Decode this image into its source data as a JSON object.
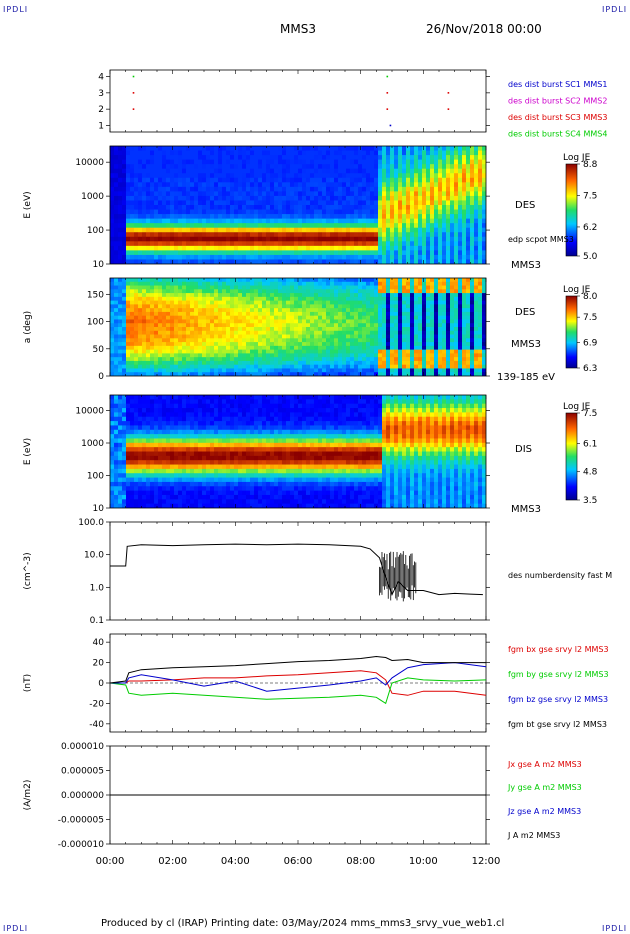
{
  "header": {
    "corner_left_top": "IPDLI",
    "corner_right_top": "IPDLI",
    "corner_left_bottom": "IPDLI",
    "corner_right_bottom": "IPDLI",
    "spacecraft": "MMS3",
    "date": "26/Nov/2018 00:00"
  },
  "footer": {
    "text": "Produced by cl (IRAP)   Printing date: 03/May/2024   mms_mms3_srvy_vue_web1.cl"
  },
  "colors": {
    "blue": "#0000cc",
    "magenta": "#cc00cc",
    "red": "#dd0000",
    "green": "#00cc00",
    "black": "#000000"
  },
  "chart_data": [
    {
      "type": "scatter",
      "panel": "burst",
      "yticks": [
        "4",
        "3",
        "2",
        "1"
      ],
      "ylim": [
        0.6,
        4.4
      ],
      "legend": [
        {
          "text": "des dist burst SC1 MMS1",
          "color": "#0000cc"
        },
        {
          "text": "des dist burst SC2 MMS2",
          "color": "#cc00cc"
        },
        {
          "text": "des dist burst SC3 MMS3",
          "color": "#dd0000"
        },
        {
          "text": "des dist burst SC4 MMS4",
          "color": "#00cc00"
        }
      ],
      "points": [
        {
          "x": 0.75,
          "y": 4,
          "color": "#00cc00"
        },
        {
          "x": 0.75,
          "y": 3,
          "color": "#dd0000"
        },
        {
          "x": 0.75,
          "y": 2,
          "color": "#dd0000"
        },
        {
          "x": 8.85,
          "y": 4,
          "color": "#00cc00"
        },
        {
          "x": 8.85,
          "y": 3,
          "color": "#dd0000"
        },
        {
          "x": 8.85,
          "y": 2,
          "color": "#dd0000"
        },
        {
          "x": 8.95,
          "y": 1,
          "color": "#0000cc"
        },
        {
          "x": 10.8,
          "y": 3,
          "color": "#dd0000"
        },
        {
          "x": 10.8,
          "y": 2,
          "color": "#dd0000"
        }
      ]
    },
    {
      "type": "heatmap",
      "panel": "des-energy",
      "ylabel": "E (eV)",
      "yticks": [
        "10000",
        "1000",
        "100",
        "10"
      ],
      "ylim": [
        10,
        30000
      ],
      "yscale": "log",
      "right_labels": [
        "DES",
        "edp scpot MMS3",
        "MMS3"
      ],
      "colorbar": {
        "title": "Log JE",
        "ticks": [
          "8.8",
          "7.5",
          "6.2",
          "5.0"
        ],
        "range": [
          5.0,
          8.8
        ]
      }
    },
    {
      "type": "heatmap",
      "panel": "des-pitch",
      "ylabel": "a (deg)",
      "yticks": [
        "150",
        "100",
        "50",
        "0"
      ],
      "ylim": [
        0,
        180
      ],
      "right_labels": [
        "DES",
        "MMS3",
        "139-185 eV"
      ],
      "colorbar": {
        "title": "Log JE",
        "ticks": [
          "8.0",
          "7.5",
          "6.9",
          "6.3"
        ],
        "range": [
          6.3,
          8.0
        ]
      }
    },
    {
      "type": "heatmap",
      "panel": "dis-energy",
      "ylabel": "E (eV)",
      "yticks": [
        "10000",
        "1000",
        "100",
        "10"
      ],
      "ylim": [
        10,
        30000
      ],
      "yscale": "log",
      "right_labels": [
        "DIS",
        "MMS3"
      ],
      "colorbar": {
        "title": "Log JE",
        "ticks": [
          "7.5",
          "6.1",
          "4.8",
          "3.5"
        ],
        "range": [
          3.5,
          7.5
        ]
      }
    },
    {
      "type": "line",
      "panel": "density",
      "ylabel": "(cm^-3)",
      "yticks": [
        "100.0",
        "10.0",
        "1.0",
        "0.1"
      ],
      "ylim": [
        0.1,
        100
      ],
      "yscale": "log",
      "legend": [
        {
          "text": "des numberdensity fast M",
          "color": "#000000"
        }
      ],
      "x": [
        0,
        0.5,
        0.55,
        1,
        2,
        3,
        4,
        5,
        6,
        7,
        8,
        8.3,
        8.6,
        8.8,
        9.0,
        9.2,
        9.5,
        10,
        10.5,
        11,
        11.5,
        11.9
      ],
      "y": [
        4.5,
        4.5,
        18,
        20,
        19,
        20,
        21,
        20,
        21,
        20,
        18,
        15,
        8,
        2,
        0.6,
        1.5,
        0.8,
        0.8,
        0.6,
        0.65,
        0.62,
        0.6
      ]
    },
    {
      "type": "line",
      "panel": "magnetic-field",
      "ylabel": "(nT)",
      "yticks": [
        "40",
        "20",
        "0",
        "-20",
        "-40"
      ],
      "ylim": [
        -48,
        48
      ],
      "legend": [
        {
          "text": "fgm bx gse srvy l2 MMS3",
          "color": "#dd0000"
        },
        {
          "text": "fgm by gse srvy l2 MMS3",
          "color": "#00cc00"
        },
        {
          "text": "fgm bz gse srvy l2 MMS3",
          "color": "#0000cc"
        },
        {
          "text": "fgm bt gse srvy l2 MMS3",
          "color": "#000000"
        }
      ],
      "x": [
        0,
        0.5,
        0.6,
        1,
        2,
        3,
        4,
        5,
        6,
        7,
        8,
        8.5,
        8.8,
        9.0,
        9.5,
        10,
        11,
        12
      ],
      "series": [
        {
          "color": "#dd0000",
          "values": [
            0,
            0,
            2,
            2,
            3,
            5,
            5,
            7,
            8,
            10,
            12,
            10,
            3,
            -10,
            -12,
            -8,
            -8,
            -12
          ]
        },
        {
          "color": "#00cc00",
          "values": [
            0,
            -2,
            -10,
            -12,
            -10,
            -12,
            -14,
            -16,
            -15,
            -14,
            -12,
            -14,
            -20,
            0,
            5,
            3,
            2,
            3
          ]
        },
        {
          "color": "#0000cc",
          "values": [
            0,
            0,
            5,
            8,
            3,
            -3,
            2,
            -8,
            -5,
            -2,
            2,
            5,
            -2,
            5,
            15,
            18,
            20,
            16
          ]
        },
        {
          "color": "#000000",
          "values": [
            0,
            2,
            10,
            13,
            15,
            16,
            17,
            19,
            21,
            22,
            24,
            26,
            25,
            22,
            23,
            20,
            20,
            20
          ]
        }
      ]
    },
    {
      "type": "line",
      "panel": "current-density",
      "ylabel": "(A/m2)",
      "yticks": [
        "0.000010",
        "0.000005",
        "0.000000",
        "-0.000005",
        "-0.000010"
      ],
      "ylim": [
        -1e-05,
        1e-05
      ],
      "xticks": [
        "00:00",
        "02:00",
        "04:00",
        "06:00",
        "08:00",
        "10:00",
        "12:00"
      ],
      "legend": [
        {
          "text": "Jx gse A m2 MMS3",
          "color": "#dd0000"
        },
        {
          "text": "Jy gse A m2 MMS3",
          "color": "#00cc00"
        },
        {
          "text": "Jz gse A m2 MMS3",
          "color": "#0000cc"
        },
        {
          "text": "J A m2 MMS3",
          "color": "#000000"
        }
      ],
      "x": [
        0,
        2,
        4,
        6,
        8,
        9,
        10,
        12
      ],
      "series": [
        {
          "color": "#0000cc",
          "values": [
            0,
            0,
            0,
            0,
            0,
            0,
            0,
            0
          ]
        },
        {
          "color": "#000000",
          "values": [
            0,
            0,
            0,
            0,
            0,
            0,
            0,
            0
          ]
        }
      ]
    }
  ]
}
